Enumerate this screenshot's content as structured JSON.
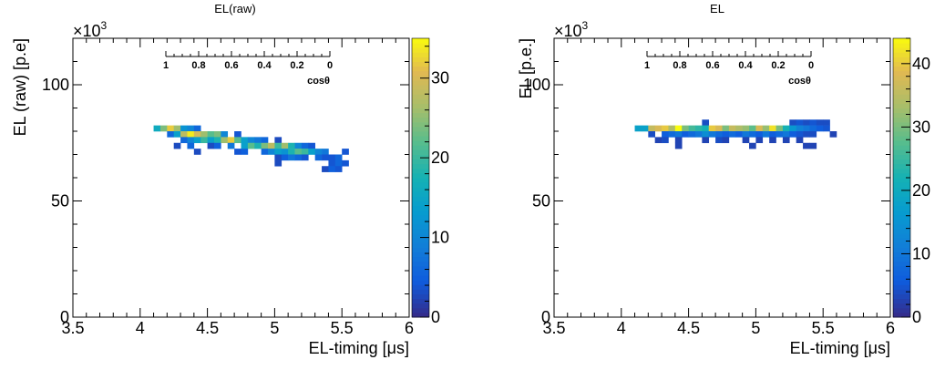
{
  "chart_data": [
    {
      "type": "heatmap",
      "title": "EL(raw)",
      "xlabel": "EL-timing [μs]",
      "ylabel": "EL (raw) [p.e]",
      "y_multiplier_label": "×10",
      "y_multiplier_exp": "3",
      "xlim": [
        3.5,
        6
      ],
      "ylim": [
        0,
        120000
      ],
      "x_ticks": [
        "3.5",
        "4",
        "4.5",
        "5",
        "5.5",
        "6"
      ],
      "y_ticks": [
        "0",
        "50",
        "100"
      ],
      "z_range": [
        0,
        35
      ],
      "z_ticks": [
        "0",
        "10",
        "20",
        "30"
      ],
      "top_axis": {
        "label": "cosθ",
        "ticks": [
          "1",
          "0.8",
          "0.6",
          "0.4",
          "0.2",
          "0"
        ]
      },
      "bin_size": {
        "x": 0.05,
        "y": 2500
      },
      "cells": [
        [
          4.1,
          80000,
          16
        ],
        [
          4.15,
          80000,
          24
        ],
        [
          4.2,
          80000,
          32
        ],
        [
          4.25,
          80000,
          26
        ],
        [
          4.3,
          80000,
          12
        ],
        [
          4.35,
          80000,
          10
        ],
        [
          4.4,
          80000,
          6
        ],
        [
          4.2,
          77500,
          6
        ],
        [
          4.25,
          77500,
          14
        ],
        [
          4.3,
          77500,
          28
        ],
        [
          4.35,
          77500,
          34
        ],
        [
          4.4,
          77500,
          30
        ],
        [
          4.45,
          77500,
          26
        ],
        [
          4.5,
          77500,
          22
        ],
        [
          4.55,
          77500,
          24
        ],
        [
          4.6,
          77500,
          10
        ],
        [
          4.7,
          77500,
          4
        ],
        [
          4.3,
          75000,
          6
        ],
        [
          4.35,
          75000,
          10
        ],
        [
          4.4,
          75000,
          14
        ],
        [
          4.45,
          75000,
          20
        ],
        [
          4.5,
          75000,
          14
        ],
        [
          4.55,
          75000,
          18
        ],
        [
          4.6,
          75000,
          26
        ],
        [
          4.65,
          75000,
          32
        ],
        [
          4.7,
          75000,
          22
        ],
        [
          4.75,
          75000,
          14
        ],
        [
          4.8,
          75000,
          10
        ],
        [
          4.85,
          75000,
          8
        ],
        [
          4.9,
          75000,
          6
        ],
        [
          5.0,
          75000,
          3
        ],
        [
          4.25,
          72500,
          3
        ],
        [
          4.35,
          72500,
          6
        ],
        [
          4.5,
          72500,
          3
        ],
        [
          4.55,
          72500,
          5
        ],
        [
          4.65,
          72500,
          8
        ],
        [
          4.75,
          72500,
          14
        ],
        [
          4.8,
          72500,
          22
        ],
        [
          4.85,
          72500,
          18
        ],
        [
          4.9,
          72500,
          24
        ],
        [
          4.95,
          72500,
          28
        ],
        [
          5.0,
          72500,
          20
        ],
        [
          5.05,
          72500,
          26
        ],
        [
          5.1,
          72500,
          18
        ],
        [
          5.15,
          72500,
          10
        ],
        [
          5.2,
          72500,
          6
        ],
        [
          5.25,
          72500,
          4
        ],
        [
          4.4,
          70000,
          3
        ],
        [
          4.7,
          70000,
          4
        ],
        [
          4.75,
          70000,
          5
        ],
        [
          4.9,
          70000,
          6
        ],
        [
          4.95,
          70000,
          10
        ],
        [
          5.0,
          70000,
          14
        ],
        [
          5.05,
          70000,
          12
        ],
        [
          5.1,
          70000,
          18
        ],
        [
          5.15,
          70000,
          22
        ],
        [
          5.2,
          70000,
          20
        ],
        [
          5.25,
          70000,
          14
        ],
        [
          5.3,
          70000,
          10
        ],
        [
          5.35,
          70000,
          8
        ],
        [
          5.5,
          70000,
          4
        ],
        [
          5.0,
          67500,
          3
        ],
        [
          5.05,
          67500,
          5
        ],
        [
          5.1,
          67500,
          8
        ],
        [
          5.15,
          67500,
          6
        ],
        [
          5.2,
          67500,
          4
        ],
        [
          5.3,
          67500,
          6
        ],
        [
          5.35,
          67500,
          4
        ],
        [
          5.4,
          67500,
          4
        ],
        [
          5.45,
          67500,
          6
        ],
        [
          5.0,
          65000,
          3
        ],
        [
          5.4,
          65000,
          4
        ],
        [
          5.45,
          65000,
          6
        ],
        [
          5.5,
          65000,
          4
        ],
        [
          5.35,
          62500,
          3
        ],
        [
          5.4,
          62500,
          5
        ],
        [
          5.45,
          62500,
          4
        ]
      ]
    },
    {
      "type": "heatmap",
      "title": "EL",
      "xlabel": "EL-timing [μs]",
      "ylabel": "EL [p.e.]",
      "y_multiplier_label": "×10",
      "y_multiplier_exp": "3",
      "xlim": [
        3.5,
        6
      ],
      "ylim": [
        0,
        120000
      ],
      "x_ticks": [
        "3.5",
        "4",
        "4.5",
        "5",
        "5.5",
        "6"
      ],
      "y_ticks": [
        "0",
        "50",
        "100"
      ],
      "z_range": [
        0,
        44
      ],
      "z_ticks": [
        "0",
        "10",
        "20",
        "30",
        "40"
      ],
      "top_axis": {
        "label": "cosθ",
        "ticks": [
          "1",
          "0.8",
          "0.6",
          "0.4",
          "0.2",
          "0"
        ]
      },
      "bin_size": {
        "x": 0.05,
        "y": 2500
      },
      "cells": [
        [
          4.6,
          82500,
          4
        ],
        [
          5.25,
          82500,
          4
        ],
        [
          5.3,
          82500,
          5
        ],
        [
          5.35,
          82500,
          4
        ],
        [
          5.4,
          82500,
          5
        ],
        [
          5.45,
          82500,
          4
        ],
        [
          5.5,
          82500,
          4
        ],
        [
          4.1,
          80000,
          18
        ],
        [
          4.15,
          80000,
          18
        ],
        [
          4.2,
          80000,
          36
        ],
        [
          4.25,
          80000,
          38
        ],
        [
          4.3,
          80000,
          40
        ],
        [
          4.35,
          80000,
          34
        ],
        [
          4.4,
          80000,
          44
        ],
        [
          4.45,
          80000,
          30
        ],
        [
          4.5,
          80000,
          26
        ],
        [
          4.55,
          80000,
          24
        ],
        [
          4.6,
          80000,
          22
        ],
        [
          4.65,
          80000,
          40
        ],
        [
          4.7,
          80000,
          38
        ],
        [
          4.75,
          80000,
          30
        ],
        [
          4.8,
          80000,
          36
        ],
        [
          4.85,
          80000,
          34
        ],
        [
          4.9,
          80000,
          32
        ],
        [
          4.95,
          80000,
          28
        ],
        [
          5.0,
          80000,
          38
        ],
        [
          5.05,
          80000,
          32
        ],
        [
          5.1,
          80000,
          42
        ],
        [
          5.15,
          80000,
          30
        ],
        [
          5.2,
          80000,
          22
        ],
        [
          5.25,
          80000,
          16
        ],
        [
          5.3,
          80000,
          12
        ],
        [
          5.35,
          80000,
          10
        ],
        [
          5.4,
          80000,
          8
        ],
        [
          5.45,
          80000,
          6
        ],
        [
          5.5,
          80000,
          5
        ],
        [
          4.2,
          77500,
          4
        ],
        [
          4.3,
          77500,
          6
        ],
        [
          4.35,
          77500,
          8
        ],
        [
          4.4,
          77500,
          10
        ],
        [
          4.45,
          77500,
          6
        ],
        [
          4.5,
          77500,
          8
        ],
        [
          4.55,
          77500,
          10
        ],
        [
          4.6,
          77500,
          14
        ],
        [
          4.65,
          77500,
          10
        ],
        [
          4.7,
          77500,
          8
        ],
        [
          4.75,
          77500,
          6
        ],
        [
          4.8,
          77500,
          8
        ],
        [
          4.85,
          77500,
          6
        ],
        [
          4.9,
          77500,
          10
        ],
        [
          4.95,
          77500,
          8
        ],
        [
          5.0,
          77500,
          6
        ],
        [
          5.05,
          77500,
          10
        ],
        [
          5.1,
          77500,
          6
        ],
        [
          5.15,
          77500,
          8
        ],
        [
          5.2,
          77500,
          10
        ],
        [
          5.25,
          77500,
          6
        ],
        [
          5.3,
          77500,
          5
        ],
        [
          5.35,
          77500,
          4
        ],
        [
          5.4,
          77500,
          4
        ],
        [
          5.55,
          77500,
          3
        ],
        [
          4.25,
          75000,
          3
        ],
        [
          4.3,
          75000,
          4
        ],
        [
          4.4,
          75000,
          3
        ],
        [
          4.6,
          75000,
          3
        ],
        [
          4.7,
          75000,
          4
        ],
        [
          4.75,
          75000,
          3
        ],
        [
          4.9,
          75000,
          3
        ],
        [
          5.0,
          75000,
          3
        ],
        [
          5.1,
          75000,
          3
        ],
        [
          5.2,
          75000,
          3
        ],
        [
          5.3,
          75000,
          3
        ],
        [
          4.4,
          72500,
          3
        ],
        [
          4.95,
          72500,
          3
        ],
        [
          5.35,
          72500,
          3
        ],
        [
          5.4,
          72500,
          3
        ]
      ]
    }
  ]
}
